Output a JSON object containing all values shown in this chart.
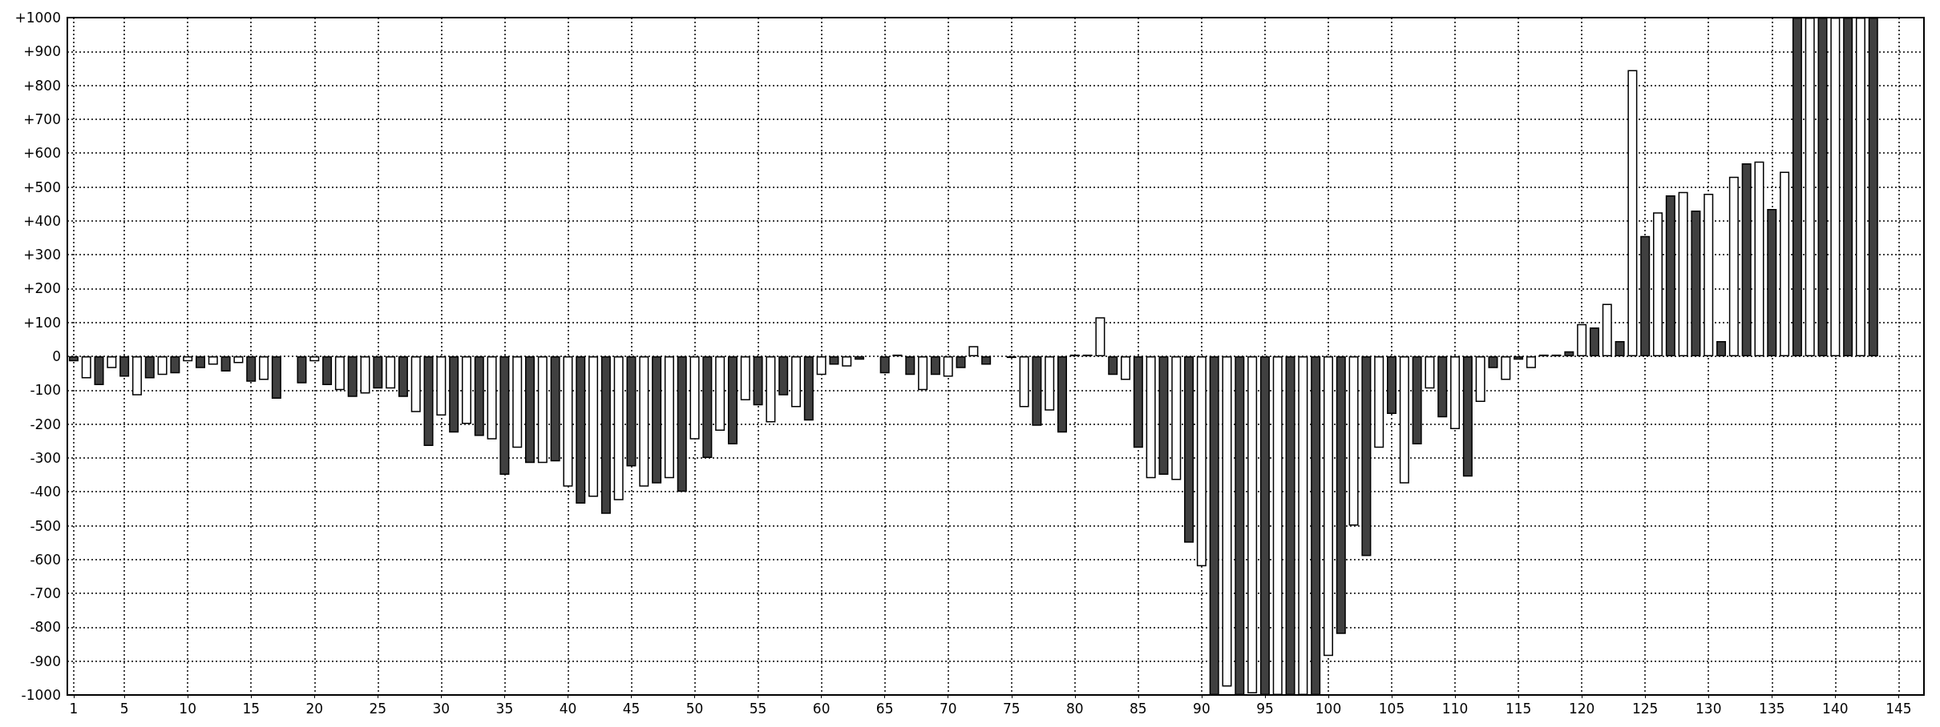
{
  "chart_data": {
    "type": "bar",
    "xlim": [
      0.5,
      147
    ],
    "xticks": [
      1,
      5,
      10,
      15,
      20,
      25,
      30,
      35,
      40,
      45,
      50,
      55,
      60,
      65,
      70,
      75,
      80,
      85,
      90,
      95,
      100,
      105,
      110,
      115,
      120,
      125,
      130,
      135,
      140,
      145
    ],
    "ylim": [
      -1000,
      1000
    ],
    "yticks": [
      {
        "value": -1000,
        "label": "-1000"
      },
      {
        "value": -900,
        "label": "-900"
      },
      {
        "value": -800,
        "label": "-800"
      },
      {
        "value": -700,
        "label": "-700"
      },
      {
        "value": -600,
        "label": "-600"
      },
      {
        "value": -500,
        "label": "-500"
      },
      {
        "value": -400,
        "label": "-400"
      },
      {
        "value": -300,
        "label": "-300"
      },
      {
        "value": -200,
        "label": "-200"
      },
      {
        "value": -100,
        "label": "-100"
      },
      {
        "value": 0,
        "label": "0"
      },
      {
        "value": 100,
        "label": "+100"
      },
      {
        "value": 200,
        "label": "+200"
      },
      {
        "value": 300,
        "label": "+300"
      },
      {
        "value": 400,
        "label": "+400"
      },
      {
        "value": 500,
        "label": "+500"
      },
      {
        "value": 600,
        "label": "+600"
      },
      {
        "value": 700,
        "label": "+700"
      },
      {
        "value": 800,
        "label": "+800"
      },
      {
        "value": 900,
        "label": "+900"
      },
      {
        "value": 1000,
        "label": "+1000"
      }
    ],
    "grid": true,
    "series": [
      {
        "color": "#404040",
        "x": [
          1,
          3,
          5,
          7,
          9,
          11,
          13,
          15,
          17,
          19,
          21,
          23,
          25,
          27,
          29,
          31,
          33,
          35,
          37,
          39,
          41,
          43,
          45,
          47,
          49,
          51,
          53,
          55,
          57,
          59,
          61,
          63,
          65,
          67,
          69,
          71,
          73,
          75,
          77,
          79,
          81,
          83,
          85,
          87,
          89,
          91,
          93,
          95,
          97,
          99,
          101,
          103,
          105,
          107,
          109,
          111,
          113,
          115,
          117,
          119,
          121,
          123,
          125,
          127,
          129,
          131,
          133,
          135,
          137,
          139,
          141,
          143
        ],
        "values": [
          -15,
          -85,
          -60,
          -65,
          -50,
          -35,
          -45,
          -75,
          -125,
          -80,
          -85,
          -120,
          -95,
          -120,
          -265,
          -225,
          -235,
          -350,
          -315,
          -310,
          -435,
          -465,
          -325,
          -375,
          -400,
          -300,
          -260,
          -145,
          -115,
          -190,
          -25,
          -10,
          -50,
          -55,
          -55,
          -35,
          -25,
          -5,
          -205,
          -225,
          5,
          -55,
          -270,
          -350,
          -550,
          -1000,
          -1000,
          -1000,
          -1000,
          -1000,
          -820,
          -590,
          -170,
          -260,
          -180,
          -355,
          -35,
          -10,
          5,
          15,
          85,
          45,
          355,
          475,
          430,
          45,
          570,
          435,
          1000,
          1000,
          1000,
          1000
        ]
      },
      {
        "color": "#ffffff",
        "x": [
          2,
          4,
          6,
          8,
          10,
          12,
          14,
          16,
          18,
          20,
          22,
          24,
          26,
          28,
          30,
          32,
          34,
          36,
          38,
          40,
          42,
          44,
          46,
          48,
          50,
          52,
          54,
          56,
          58,
          60,
          62,
          64,
          66,
          68,
          70,
          72,
          74,
          76,
          78,
          80,
          82,
          84,
          86,
          88,
          90,
          92,
          94,
          96,
          98,
          100,
          102,
          104,
          106,
          108,
          110,
          112,
          114,
          116,
          118,
          120,
          122,
          124,
          126,
          128,
          130,
          132,
          134,
          136,
          138,
          140,
          142
        ],
        "values": [
          -65,
          -35,
          -115,
          -55,
          -15,
          -25,
          -20,
          -70,
          null,
          -15,
          -100,
          -110,
          -95,
          -165,
          -175,
          -200,
          -245,
          -270,
          -315,
          -385,
          -415,
          -425,
          -385,
          -360,
          -245,
          -220,
          -130,
          -195,
          -150,
          -55,
          -30,
          null,
          5,
          -100,
          -60,
          30,
          null,
          -150,
          -160,
          5,
          115,
          -70,
          -360,
          -365,
          -620,
          -975,
          -995,
          -1000,
          -1000,
          -885,
          -500,
          -270,
          -375,
          -95,
          -215,
          -135,
          -70,
          -35,
          5,
          95,
          155,
          845,
          425,
          485,
          480,
          530,
          575,
          545,
          1000,
          1000,
          1000
        ]
      }
    ]
  }
}
